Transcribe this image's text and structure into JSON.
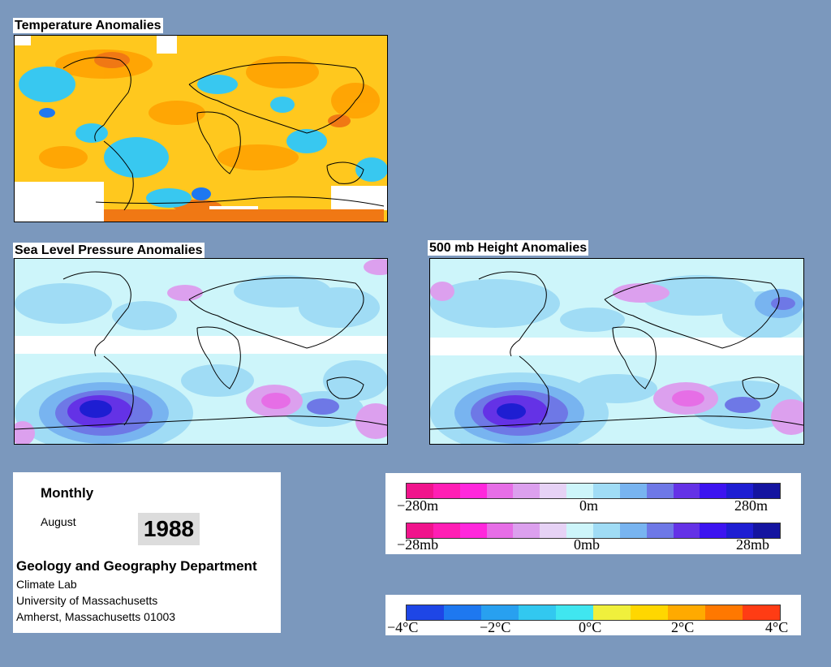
{
  "panels": {
    "temperature": {
      "title": "Temperature Anomalies"
    },
    "slp": {
      "title": "Sea Level Pressure Anomalies"
    },
    "height500": {
      "title": "500 mb Height Anomalies"
    }
  },
  "info": {
    "period": "Monthly",
    "month": "August",
    "year": "1988",
    "department": "Geology and Geography Department",
    "lab": "Climate Lab",
    "university": "University of Massachusetts",
    "address": "Amherst, Massachusetts 01003"
  },
  "legend_height": {
    "labels": [
      "−280m",
      "0m",
      "280m"
    ],
    "colors": [
      "#f0148c",
      "#ff1eb4",
      "#ff28dc",
      "#e66ee6",
      "#dca0ee",
      "#e6d2f5",
      "#cdf5fa",
      "#a0dcf5",
      "#78b4f0",
      "#6e78e6",
      "#6432e6",
      "#3c14f0",
      "#1e1ed2",
      "#1414a0"
    ]
  },
  "legend_pressure": {
    "labels": [
      "−28mb",
      "0mb",
      "28mb"
    ],
    "colors": [
      "#f0148c",
      "#ff1eb4",
      "#ff28dc",
      "#e66ee6",
      "#dca0ee",
      "#e6d2f5",
      "#cdf5fa",
      "#a0dcf5",
      "#78b4f0",
      "#6e78e6",
      "#6432e6",
      "#3c14f0",
      "#1e1ed2",
      "#1414a0"
    ]
  },
  "legend_temperature": {
    "labels": [
      "−4°C",
      "−2°C",
      "0°C",
      "2°C",
      "4°C"
    ],
    "colors": [
      "#1e46e6",
      "#1e78f0",
      "#28a0f0",
      "#32c8f0",
      "#40e6f0",
      "#f0f03c",
      "#ffd700",
      "#ffaa00",
      "#ff7800",
      "#ff3c14"
    ]
  },
  "colors": {
    "background": "#7b98bd"
  }
}
